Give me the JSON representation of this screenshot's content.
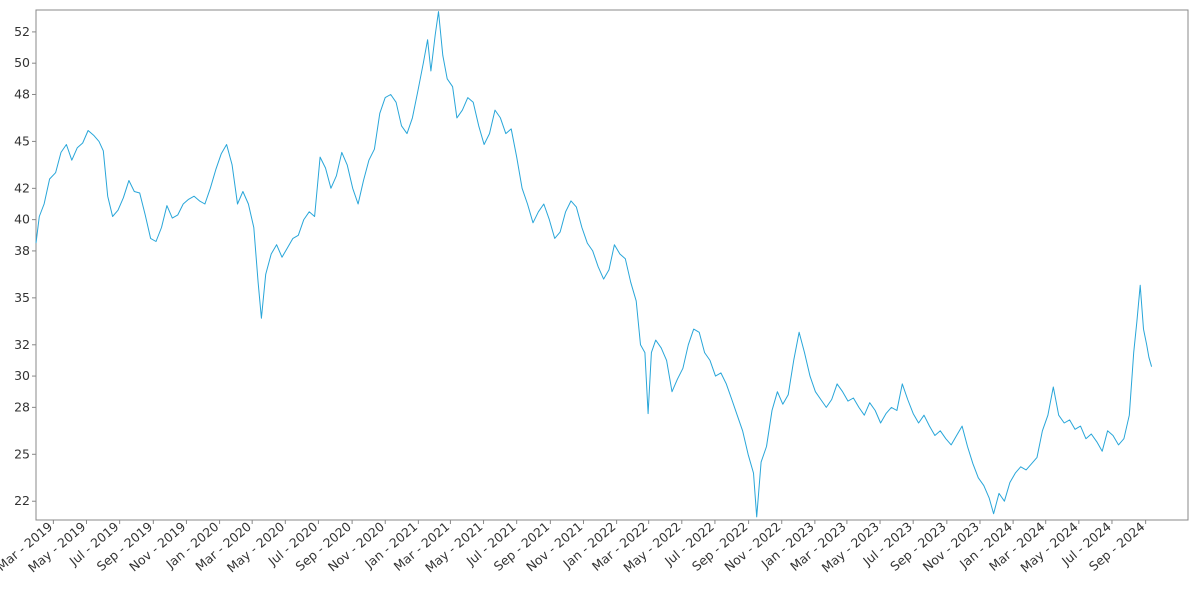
{
  "chart_data": {
    "type": "line",
    "title": "",
    "xlabel": "",
    "ylabel": "",
    "grid": false,
    "legend": "none",
    "line_color": "#29a6d9",
    "x_range": [
      "2019-01-28",
      "2024-11-18"
    ],
    "ylim": [
      20.8,
      53.4
    ],
    "yticks": [
      22,
      25,
      28,
      30,
      32,
      35,
      38,
      40,
      42,
      45,
      48,
      50,
      52
    ],
    "xticks": [
      {
        "date": "2019-03-01",
        "label": "Mar - 2019"
      },
      {
        "date": "2019-05-01",
        "label": "May - 2019"
      },
      {
        "date": "2019-07-01",
        "label": "Jul - 2019"
      },
      {
        "date": "2019-09-01",
        "label": "Sep - 2019"
      },
      {
        "date": "2019-11-01",
        "label": "Nov - 2019"
      },
      {
        "date": "2020-01-01",
        "label": "Jan - 2020"
      },
      {
        "date": "2020-03-01",
        "label": "Mar - 2020"
      },
      {
        "date": "2020-05-01",
        "label": "May - 2020"
      },
      {
        "date": "2020-07-01",
        "label": "Jul - 2020"
      },
      {
        "date": "2020-09-01",
        "label": "Sep - 2020"
      },
      {
        "date": "2020-11-01",
        "label": "Nov - 2020"
      },
      {
        "date": "2021-01-01",
        "label": "Jan - 2021"
      },
      {
        "date": "2021-03-01",
        "label": "Mar - 2021"
      },
      {
        "date": "2021-05-01",
        "label": "May - 2021"
      },
      {
        "date": "2021-07-01",
        "label": "Jul - 2021"
      },
      {
        "date": "2021-09-01",
        "label": "Sep - 2021"
      },
      {
        "date": "2021-11-01",
        "label": "Nov - 2021"
      },
      {
        "date": "2022-01-01",
        "label": "Jan - 2022"
      },
      {
        "date": "2022-03-01",
        "label": "Mar - 2022"
      },
      {
        "date": "2022-05-01",
        "label": "May - 2022"
      },
      {
        "date": "2022-07-01",
        "label": "Jul - 2022"
      },
      {
        "date": "2022-09-01",
        "label": "Sep - 2022"
      },
      {
        "date": "2022-11-01",
        "label": "Nov - 2022"
      },
      {
        "date": "2023-01-01",
        "label": "Jan - 2023"
      },
      {
        "date": "2023-03-01",
        "label": "Mar - 2023"
      },
      {
        "date": "2023-05-01",
        "label": "May - 2023"
      },
      {
        "date": "2023-07-01",
        "label": "Jul - 2023"
      },
      {
        "date": "2023-09-01",
        "label": "Sep - 2023"
      },
      {
        "date": "2023-11-01",
        "label": "Nov - 2023"
      },
      {
        "date": "2024-01-01",
        "label": "Jan - 2024"
      },
      {
        "date": "2024-03-01",
        "label": "Mar - 2024"
      },
      {
        "date": "2024-05-01",
        "label": "May - 2024"
      },
      {
        "date": "2024-07-01",
        "label": "Jul - 2024"
      },
      {
        "date": "2024-09-01",
        "label": "Sep - 2024"
      }
    ],
    "series": [
      {
        "name": "",
        "points": [
          [
            "2019-01-28",
            38.5
          ],
          [
            "2019-02-03",
            40.2
          ],
          [
            "2019-02-12",
            41.0
          ],
          [
            "2019-02-22",
            42.6
          ],
          [
            "2019-03-05",
            43.0
          ],
          [
            "2019-03-15",
            44.3
          ],
          [
            "2019-03-25",
            44.8
          ],
          [
            "2019-04-04",
            43.8
          ],
          [
            "2019-04-14",
            44.6
          ],
          [
            "2019-04-24",
            44.9
          ],
          [
            "2019-05-04",
            45.7
          ],
          [
            "2019-05-14",
            45.4
          ],
          [
            "2019-05-24",
            45.0
          ],
          [
            "2019-06-01",
            44.4
          ],
          [
            "2019-06-09",
            41.5
          ],
          [
            "2019-06-18",
            40.2
          ],
          [
            "2019-06-28",
            40.6
          ],
          [
            "2019-07-08",
            41.4
          ],
          [
            "2019-07-18",
            42.5
          ],
          [
            "2019-07-28",
            41.8
          ],
          [
            "2019-08-07",
            41.7
          ],
          [
            "2019-08-17",
            40.3
          ],
          [
            "2019-08-27",
            38.8
          ],
          [
            "2019-09-06",
            38.6
          ],
          [
            "2019-09-16",
            39.5
          ],
          [
            "2019-09-26",
            40.9
          ],
          [
            "2019-10-06",
            40.1
          ],
          [
            "2019-10-16",
            40.3
          ],
          [
            "2019-10-26",
            41.0
          ],
          [
            "2019-11-05",
            41.3
          ],
          [
            "2019-11-15",
            41.5
          ],
          [
            "2019-11-25",
            41.2
          ],
          [
            "2019-12-05",
            41.0
          ],
          [
            "2019-12-15",
            42.0
          ],
          [
            "2019-12-25",
            43.2
          ],
          [
            "2020-01-04",
            44.2
          ],
          [
            "2020-01-14",
            44.8
          ],
          [
            "2020-01-24",
            43.5
          ],
          [
            "2020-02-03",
            41.0
          ],
          [
            "2020-02-13",
            41.8
          ],
          [
            "2020-02-23",
            41.0
          ],
          [
            "2020-03-04",
            39.5
          ],
          [
            "2020-03-12",
            36.0
          ],
          [
            "2020-03-18",
            33.7
          ],
          [
            "2020-03-26",
            36.5
          ],
          [
            "2020-04-05",
            37.8
          ],
          [
            "2020-04-15",
            38.4
          ],
          [
            "2020-04-25",
            37.6
          ],
          [
            "2020-05-05",
            38.2
          ],
          [
            "2020-05-15",
            38.8
          ],
          [
            "2020-05-25",
            39.0
          ],
          [
            "2020-06-04",
            40.0
          ],
          [
            "2020-06-14",
            40.5
          ],
          [
            "2020-06-24",
            40.2
          ],
          [
            "2020-07-04",
            44.0
          ],
          [
            "2020-07-14",
            43.3
          ],
          [
            "2020-07-24",
            42.0
          ],
          [
            "2020-08-03",
            42.8
          ],
          [
            "2020-08-13",
            44.3
          ],
          [
            "2020-08-23",
            43.5
          ],
          [
            "2020-09-02",
            42.0
          ],
          [
            "2020-09-12",
            41.0
          ],
          [
            "2020-09-22",
            42.5
          ],
          [
            "2020-10-02",
            43.8
          ],
          [
            "2020-10-12",
            44.5
          ],
          [
            "2020-10-22",
            46.8
          ],
          [
            "2020-11-01",
            47.8
          ],
          [
            "2020-11-11",
            48.0
          ],
          [
            "2020-11-21",
            47.5
          ],
          [
            "2020-12-01",
            46.0
          ],
          [
            "2020-12-11",
            45.5
          ],
          [
            "2020-12-21",
            46.5
          ],
          [
            "2020-12-31",
            48.2
          ],
          [
            "2021-01-10",
            50.0
          ],
          [
            "2021-01-18",
            51.5
          ],
          [
            "2021-01-24",
            49.5
          ],
          [
            "2021-02-01",
            51.8
          ],
          [
            "2021-02-07",
            53.3
          ],
          [
            "2021-02-15",
            50.5
          ],
          [
            "2021-02-23",
            49.0
          ],
          [
            "2021-03-05",
            48.5
          ],
          [
            "2021-03-13",
            46.5
          ],
          [
            "2021-03-23",
            47.0
          ],
          [
            "2021-04-02",
            47.8
          ],
          [
            "2021-04-12",
            47.5
          ],
          [
            "2021-04-22",
            46.0
          ],
          [
            "2021-05-02",
            44.8
          ],
          [
            "2021-05-12",
            45.5
          ],
          [
            "2021-05-22",
            47.0
          ],
          [
            "2021-06-01",
            46.5
          ],
          [
            "2021-06-11",
            45.5
          ],
          [
            "2021-06-21",
            45.8
          ],
          [
            "2021-07-01",
            44.0
          ],
          [
            "2021-07-11",
            42.0
          ],
          [
            "2021-07-21",
            41.0
          ],
          [
            "2021-07-31",
            39.8
          ],
          [
            "2021-08-10",
            40.5
          ],
          [
            "2021-08-20",
            41.0
          ],
          [
            "2021-08-30",
            40.0
          ],
          [
            "2021-09-09",
            38.8
          ],
          [
            "2021-09-19",
            39.2
          ],
          [
            "2021-09-29",
            40.5
          ],
          [
            "2021-10-09",
            41.2
          ],
          [
            "2021-10-19",
            40.8
          ],
          [
            "2021-10-29",
            39.5
          ],
          [
            "2021-11-08",
            38.5
          ],
          [
            "2021-11-18",
            38.0
          ],
          [
            "2021-11-28",
            37.0
          ],
          [
            "2021-12-08",
            36.2
          ],
          [
            "2021-12-18",
            36.8
          ],
          [
            "2021-12-28",
            38.4
          ],
          [
            "2022-01-07",
            37.8
          ],
          [
            "2022-01-17",
            37.5
          ],
          [
            "2022-01-27",
            36.0
          ],
          [
            "2022-02-06",
            34.8
          ],
          [
            "2022-02-14",
            32.0
          ],
          [
            "2022-02-22",
            31.5
          ],
          [
            "2022-02-28",
            27.6
          ],
          [
            "2022-03-06",
            31.5
          ],
          [
            "2022-03-14",
            32.3
          ],
          [
            "2022-03-24",
            31.8
          ],
          [
            "2022-04-03",
            31.0
          ],
          [
            "2022-04-13",
            29.0
          ],
          [
            "2022-04-23",
            29.8
          ],
          [
            "2022-05-03",
            30.5
          ],
          [
            "2022-05-13",
            32.0
          ],
          [
            "2022-05-23",
            33.0
          ],
          [
            "2022-06-02",
            32.8
          ],
          [
            "2022-06-12",
            31.5
          ],
          [
            "2022-06-22",
            31.0
          ],
          [
            "2022-07-02",
            30.0
          ],
          [
            "2022-07-12",
            30.2
          ],
          [
            "2022-07-22",
            29.5
          ],
          [
            "2022-08-01",
            28.5
          ],
          [
            "2022-08-11",
            27.5
          ],
          [
            "2022-08-21",
            26.5
          ],
          [
            "2022-08-31",
            25.0
          ],
          [
            "2022-09-10",
            23.8
          ],
          [
            "2022-09-16",
            21.0
          ],
          [
            "2022-09-24",
            24.5
          ],
          [
            "2022-10-04",
            25.5
          ],
          [
            "2022-10-14",
            27.8
          ],
          [
            "2022-10-24",
            29.0
          ],
          [
            "2022-11-03",
            28.2
          ],
          [
            "2022-11-13",
            28.8
          ],
          [
            "2022-11-23",
            31.0
          ],
          [
            "2022-12-03",
            32.8
          ],
          [
            "2022-12-13",
            31.5
          ],
          [
            "2022-12-23",
            30.0
          ],
          [
            "2023-01-02",
            29.0
          ],
          [
            "2023-01-12",
            28.5
          ],
          [
            "2023-01-22",
            28.0
          ],
          [
            "2023-02-01",
            28.5
          ],
          [
            "2023-02-11",
            29.5
          ],
          [
            "2023-02-21",
            29.0
          ],
          [
            "2023-03-03",
            28.4
          ],
          [
            "2023-03-13",
            28.6
          ],
          [
            "2023-03-23",
            28.0
          ],
          [
            "2023-04-02",
            27.5
          ],
          [
            "2023-04-12",
            28.3
          ],
          [
            "2023-04-22",
            27.8
          ],
          [
            "2023-05-02",
            27.0
          ],
          [
            "2023-05-12",
            27.6
          ],
          [
            "2023-05-22",
            28.0
          ],
          [
            "2023-06-01",
            27.8
          ],
          [
            "2023-06-11",
            29.5
          ],
          [
            "2023-06-21",
            28.5
          ],
          [
            "2023-07-01",
            27.6
          ],
          [
            "2023-07-11",
            27.0
          ],
          [
            "2023-07-21",
            27.5
          ],
          [
            "2023-07-31",
            26.8
          ],
          [
            "2023-08-10",
            26.2
          ],
          [
            "2023-08-20",
            26.5
          ],
          [
            "2023-08-30",
            26.0
          ],
          [
            "2023-09-09",
            25.6
          ],
          [
            "2023-09-19",
            26.2
          ],
          [
            "2023-09-29",
            26.8
          ],
          [
            "2023-10-09",
            25.5
          ],
          [
            "2023-10-19",
            24.4
          ],
          [
            "2023-10-29",
            23.5
          ],
          [
            "2023-11-08",
            23.0
          ],
          [
            "2023-11-18",
            22.2
          ],
          [
            "2023-11-26",
            21.2
          ],
          [
            "2023-12-06",
            22.5
          ],
          [
            "2023-12-16",
            22.0
          ],
          [
            "2023-12-26",
            23.2
          ],
          [
            "2024-01-05",
            23.8
          ],
          [
            "2024-01-15",
            24.2
          ],
          [
            "2024-01-25",
            24.0
          ],
          [
            "2024-02-04",
            24.4
          ],
          [
            "2024-02-14",
            24.8
          ],
          [
            "2024-02-24",
            26.5
          ],
          [
            "2024-03-05",
            27.5
          ],
          [
            "2024-03-15",
            29.3
          ],
          [
            "2024-03-25",
            27.5
          ],
          [
            "2024-04-04",
            27.0
          ],
          [
            "2024-04-14",
            27.2
          ],
          [
            "2024-04-24",
            26.6
          ],
          [
            "2024-05-04",
            26.8
          ],
          [
            "2024-05-14",
            26.0
          ],
          [
            "2024-05-24",
            26.3
          ],
          [
            "2024-06-03",
            25.8
          ],
          [
            "2024-06-13",
            25.2
          ],
          [
            "2024-06-23",
            26.5
          ],
          [
            "2024-07-03",
            26.2
          ],
          [
            "2024-07-13",
            25.6
          ],
          [
            "2024-07-23",
            26.0
          ],
          [
            "2024-08-02",
            27.5
          ],
          [
            "2024-08-10",
            31.5
          ],
          [
            "2024-08-16",
            33.5
          ],
          [
            "2024-08-22",
            35.8
          ],
          [
            "2024-08-28",
            33.0
          ],
          [
            "2024-09-03",
            32.0
          ],
          [
            "2024-09-07",
            31.2
          ],
          [
            "2024-09-12",
            30.6
          ]
        ]
      }
    ]
  }
}
